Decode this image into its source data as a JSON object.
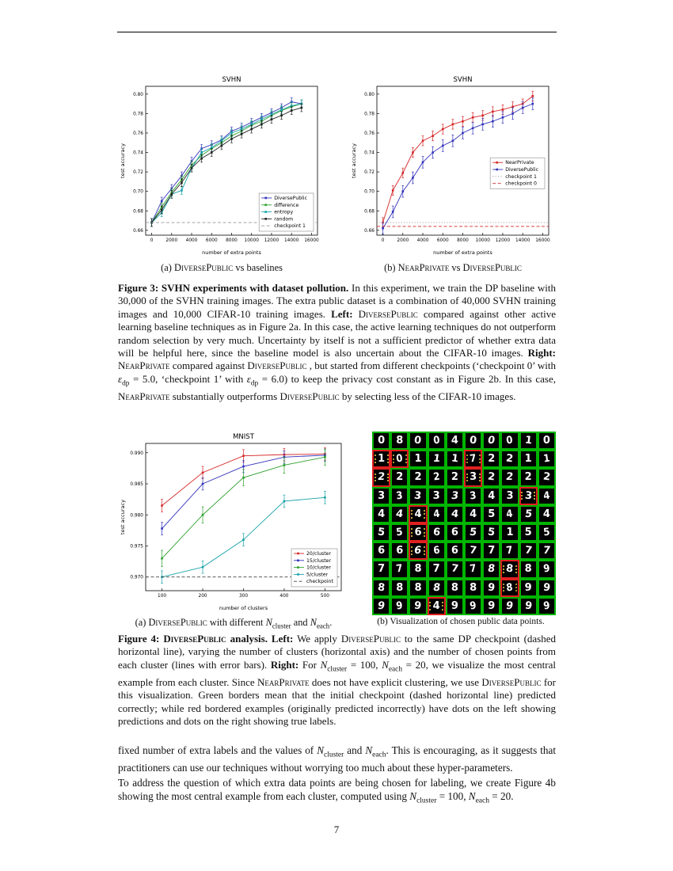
{
  "page": {
    "number": "7"
  },
  "figure3": {
    "subcaption_a": [
      {
        "t": "(a) "
      },
      {
        "t": "DiversePublic",
        "sc": 1
      },
      {
        "t": " vs baselines"
      }
    ],
    "subcaption_b": [
      {
        "t": "(b) "
      },
      {
        "t": "NearPrivate",
        "sc": 1
      },
      {
        "t": " vs "
      },
      {
        "t": "DiversePublic",
        "sc": 1
      }
    ],
    "caption": [
      {
        "t": "Figure 3: ",
        "b": 1
      },
      {
        "t": "SVHN experiments with dataset pollution.",
        "b": 1
      },
      {
        "t": " In this experiment, we train the DP baseline with 30,000 of the SVHN training images. The extra public dataset is a combination of 40,000 SVHN training images and 10,000 CIFAR-10 training images. "
      },
      {
        "t": "Left:",
        "b": 1
      },
      {
        "t": " "
      },
      {
        "t": "DiversePublic",
        "sc": 1
      },
      {
        "t": " compared against other active learning baseline techniques as in Figure 2a. In this case, the active learning techniques do not outperform random selection by very much. Uncertainty by itself is not a sufficient predictor of whether extra data will be helpful here, since the baseline model is also uncertain about the CIFAR-10 images. "
      },
      {
        "t": "Right:",
        "b": 1
      },
      {
        "t": " "
      },
      {
        "t": "NearPrivate",
        "sc": 1
      },
      {
        "t": " compared against "
      },
      {
        "t": "DiversePublic",
        "sc": 1
      },
      {
        "t": " , but started from different checkpoints (‘checkpoint 0’ with "
      },
      {
        "t": "ε",
        "i": 1
      },
      {
        "t": "dp",
        "sub": 1
      },
      {
        "t": " = 5.0, ‘checkpoint 1’ with "
      },
      {
        "t": "ε",
        "i": 1
      },
      {
        "t": "dp",
        "sub": 1
      },
      {
        "t": " = 6.0) to keep the privacy cost constant as in Figure 2b. In this case, "
      },
      {
        "t": "NearPrivate",
        "sc": 1
      },
      {
        "t": " substantially outperforms "
      },
      {
        "t": "DiversePublic",
        "sc": 1
      },
      {
        "t": " by selecting less of the CIFAR-10 images."
      }
    ]
  },
  "figure4": {
    "subcaption_a": [
      {
        "t": "(a) "
      },
      {
        "t": "DiversePublic",
        "sc": 1
      },
      {
        "t": " with different "
      },
      {
        "t": "N",
        "i": 1
      },
      {
        "t": "cluster",
        "sub": 1
      },
      {
        "t": " and "
      },
      {
        "t": "N",
        "i": 1
      },
      {
        "t": "each",
        "sub": 1
      },
      {
        "t": "."
      }
    ],
    "subcaption_b": [
      {
        "t": "(b) Visualization of chosen public data points."
      }
    ],
    "caption": [
      {
        "t": "Figure 4: ",
        "b": 1
      },
      {
        "t": "DiversePublic",
        "sc": 1,
        "b": 1
      },
      {
        "t": " analysis. ",
        "b": 1
      },
      {
        "t": "Left:",
        "b": 1
      },
      {
        "t": " We apply "
      },
      {
        "t": "DiversePublic",
        "sc": 1
      },
      {
        "t": " to the same DP checkpoint (dashed horizontal line), varying the number of clusters (horizontal axis) and the number of chosen points from each cluster (lines with error bars). "
      },
      {
        "t": "Right:",
        "b": 1
      },
      {
        "t": " For "
      },
      {
        "t": "N",
        "i": 1
      },
      {
        "t": "cluster",
        "sub": 1
      },
      {
        "t": " = 100, "
      },
      {
        "t": "N",
        "i": 1
      },
      {
        "t": "each",
        "sub": 1
      },
      {
        "t": " = 20, we visualize the most central example from each cluster. Since "
      },
      {
        "t": "NearPrivate",
        "sc": 1
      },
      {
        "t": " does not have explicit clustering, we use "
      },
      {
        "t": "DiversePublic",
        "sc": 1
      },
      {
        "t": " for this visualization. Green borders mean that the initial checkpoint (dashed horizontal line) predicted correctly; while red bordered examples (originally predicted incorrectly) have dots on the left showing predictions and dots on the right showing true labels."
      }
    ],
    "grid": {
      "green": "#00b400",
      "red": "#e02020",
      "dot": "#ffd24a",
      "rows": [
        "0g 8g 0g 0g 4g 0g 0g 0g 1g 0g",
        "1r 0r 1g 1g 1g 7r 2g 2g 1g 1g",
        "2r 2g 2g 2g 2g 3r 2g 2g 2g 2g",
        "3g 3g 3g 3g 3g 3g 4g 3g 3r 4g",
        "4g 4g 4r 4g 4g 4g 5g 4g 5g 4g",
        "5g 5g 6r 6g 6g 5g 5g 1g 5g 5g",
        "6g 6g 6r 6g 6g 7g 7g 7g 7g 7g",
        "7g 7g 8g 7g 7g 7g 8g 8r 8g 9g",
        "8g 8g 8g 8g 8g 8g 9g 8r 9g 9g",
        "9g 9g 9g 4r 9g 9g 9g 9g 9g 9g"
      ]
    }
  },
  "body": {
    "p1": [
      {
        "t": "fixed number of extra labels and the values of "
      },
      {
        "t": "N",
        "i": 1
      },
      {
        "t": "cluster",
        "sub": 1
      },
      {
        "t": " and "
      },
      {
        "t": "N",
        "i": 1
      },
      {
        "t": "each",
        "sub": 1
      },
      {
        "t": ". This is encouraging, as it suggests that practitioners can use our techniques without worrying too much about these hyper-parameters."
      }
    ],
    "p2": [
      {
        "t": "To address the question of which extra data points are being chosen for labeling, we create Figure 4b showing the most central example from each cluster, computed using "
      },
      {
        "t": "N",
        "i": 1
      },
      {
        "t": "cluster",
        "sub": 1
      },
      {
        "t": " = 100, "
      },
      {
        "t": "N",
        "i": 1
      },
      {
        "t": "each",
        "sub": 1
      },
      {
        "t": " = 20."
      }
    ]
  },
  "chart_data": [
    {
      "type": "line",
      "title": "SVHN",
      "xlabel": "number of extra points",
      "ylabel": "test accuracy",
      "xlim": [
        -600,
        16600
      ],
      "ylim": [
        0.655,
        0.808
      ],
      "xticks": [
        0,
        2000,
        4000,
        6000,
        8000,
        10000,
        12000,
        14000,
        16000
      ],
      "yticks": [
        0.66,
        0.68,
        0.7,
        0.72,
        0.74,
        0.76,
        0.78,
        0.8
      ],
      "ydec": 2,
      "legend_pos": "lr",
      "x": [
        0,
        1000,
        2000,
        3000,
        4000,
        5000,
        6000,
        7000,
        8000,
        9000,
        10000,
        11000,
        12000,
        13000,
        14000,
        15000
      ],
      "series": [
        {
          "name": "DiversePublic",
          "color": "#3333bb",
          "err": 0.004,
          "values": [
            0.668,
            0.69,
            0.703,
            0.716,
            0.731,
            0.744,
            0.748,
            0.753,
            0.762,
            0.766,
            0.771,
            0.776,
            0.781,
            0.786,
            0.792,
            0.79
          ]
        },
        {
          "name": "difference",
          "color": "#2ca02c",
          "err": 0.004,
          "values": [
            0.668,
            0.684,
            0.699,
            0.712,
            0.727,
            0.737,
            0.744,
            0.75,
            0.757,
            0.762,
            0.768,
            0.772,
            0.778,
            0.783,
            0.787,
            0.79
          ]
        },
        {
          "name": "entropy",
          "color": "#17a2a8",
          "err": 0.004,
          "values": [
            0.668,
            0.678,
            0.697,
            0.701,
            0.724,
            0.74,
            0.745,
            0.752,
            0.76,
            0.764,
            0.769,
            0.774,
            0.779,
            0.784,
            0.788,
            0.79
          ]
        },
        {
          "name": "random",
          "color": "#222222",
          "err": 0.004,
          "values": [
            0.668,
            0.681,
            0.697,
            0.709,
            0.724,
            0.734,
            0.74,
            0.747,
            0.754,
            0.759,
            0.764,
            0.769,
            0.774,
            0.778,
            0.783,
            0.786
          ]
        },
        {
          "name": "checkpoint 1",
          "color": "#999999",
          "dash": "4,2.5",
          "const": 0.668
        }
      ]
    },
    {
      "type": "line",
      "title": "SVHN",
      "xlabel": "number of extra points",
      "ylabel": "test accuracy",
      "xlim": [
        -600,
        16600
      ],
      "ylim": [
        0.655,
        0.808
      ],
      "xticks": [
        0,
        2000,
        4000,
        6000,
        8000,
        10000,
        12000,
        14000,
        16000
      ],
      "yticks": [
        0.66,
        0.68,
        0.7,
        0.72,
        0.74,
        0.76,
        0.78,
        0.8
      ],
      "ydec": 2,
      "legend_pos": "mr",
      "x": [
        0,
        1000,
        2000,
        3000,
        4000,
        5000,
        6000,
        7000,
        8000,
        9000,
        10000,
        11000,
        12000,
        13000,
        14000,
        15000
      ],
      "series": [
        {
          "name": "NearPrivate",
          "color": "#d62728",
          "err": 0.005,
          "values": [
            0.668,
            0.701,
            0.719,
            0.74,
            0.752,
            0.757,
            0.764,
            0.769,
            0.772,
            0.776,
            0.778,
            0.782,
            0.784,
            0.787,
            0.79,
            0.798
          ]
        },
        {
          "name": "DiversePublic",
          "color": "#3333bb",
          "err": 0.006,
          "values": [
            0.662,
            0.679,
            0.7,
            0.714,
            0.73,
            0.74,
            0.747,
            0.752,
            0.76,
            0.765,
            0.769,
            0.772,
            0.776,
            0.78,
            0.786,
            0.79
          ]
        },
        {
          "name": "checkpoint 1",
          "color": "#999999",
          "dash": "1.2,2.2",
          "const": 0.668
        },
        {
          "name": "checkpoint 0",
          "color": "#d62728",
          "dash": "4,2.5",
          "const": 0.664
        }
      ]
    },
    {
      "type": "line",
      "title": "MNIST",
      "xlabel": "number of clusters",
      "ylabel": "test accuracy",
      "xlim": [
        60,
        540
      ],
      "ylim": [
        0.9678,
        0.9915
      ],
      "xticks": [
        100,
        200,
        300,
        400,
        500
      ],
      "yticks": [
        0.97,
        0.975,
        0.98,
        0.985,
        0.99
      ],
      "ydec": 3,
      "legend_pos": "lr",
      "x": [
        100,
        200,
        300,
        400,
        500
      ],
      "series": [
        {
          "name": "20/cluster",
          "color": "#d62728",
          "err": 0.001,
          "values": [
            0.9815,
            0.9868,
            0.9895,
            0.9897,
            0.9898
          ]
        },
        {
          "name": "15/cluster",
          "color": "#3333bb",
          "err": 0.001,
          "values": [
            0.9778,
            0.985,
            0.9878,
            0.9893,
            0.9896
          ]
        },
        {
          "name": "10/cluster",
          "color": "#2ca02c",
          "err": 0.0013,
          "values": [
            0.973,
            0.98,
            0.986,
            0.988,
            0.9893
          ]
        },
        {
          "name": "5/cluster",
          "color": "#17a2a8",
          "err": 0.001,
          "values": [
            0.97,
            0.9716,
            0.976,
            0.9822,
            0.9828
          ]
        },
        {
          "name": "checkpoint",
          "color": "#444444",
          "dash": "4,2.5",
          "const": 0.97
        }
      ]
    }
  ]
}
